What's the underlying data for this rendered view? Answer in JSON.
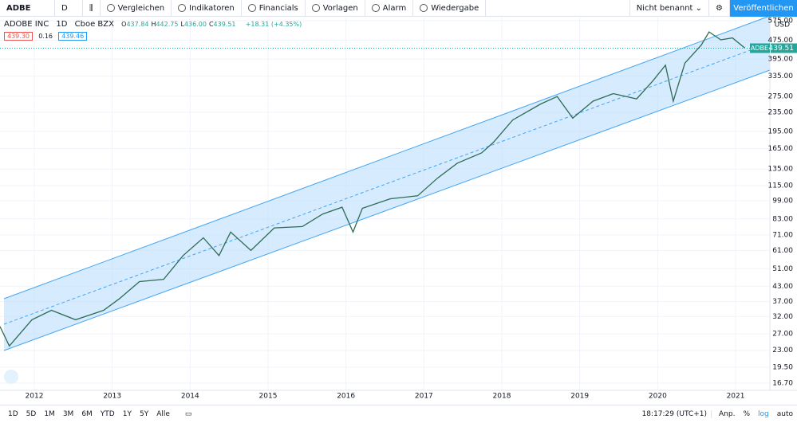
{
  "toolbar": {
    "symbol": "ADBE",
    "interval": "D",
    "items": [
      "Vergleichen",
      "Indikatoren",
      "Financials",
      "Vorlagen",
      "Alarm",
      "Wiedergabe"
    ],
    "layout_name": "Nicht benannt",
    "publish": "Veröffentlichen"
  },
  "legend": {
    "title": "ADOBE INC",
    "interval": "1D",
    "exchange": "Cboe BZX",
    "ohlc": [
      {
        "label": "O",
        "value": "437.84"
      },
      {
        "label": "H",
        "value": "442.75"
      },
      {
        "label": "L",
        "value": "436.00"
      },
      {
        "label": "C",
        "value": "439.51"
      }
    ],
    "change": "+18.31 (+4.35%)",
    "bid": "439.30",
    "spread": "0.16",
    "ask": "439.46"
  },
  "chart_data": {
    "type": "line",
    "log_scale": true,
    "color": "#2e6b55",
    "currency": "USD",
    "symbol_tag": "ADBE",
    "last_price": {
      "value": 439.51,
      "label": "439.51"
    },
    "x": [
      2011.56,
      2011.68,
      2011.97,
      2012.22,
      2012.53,
      2012.89,
      2013.09,
      2013.35,
      2013.66,
      2013.91,
      2014.17,
      2014.37,
      2014.52,
      2014.78,
      2015.08,
      2015.44,
      2015.7,
      2015.95,
      2016.09,
      2016.21,
      2016.57,
      2016.92,
      2017.18,
      2017.43,
      2017.74,
      2017.89,
      2018.14,
      2018.5,
      2018.71,
      2018.91,
      2019.17,
      2019.43,
      2019.73,
      2019.94,
      2020.1,
      2020.2,
      2020.35,
      2020.56,
      2020.66,
      2020.81,
      2020.96,
      2021.12
    ],
    "values": [
      29,
      24,
      31,
      34,
      31,
      34,
      38,
      45,
      46,
      58,
      69,
      58,
      73,
      61,
      76,
      77,
      87,
      93,
      73,
      92,
      101,
      104,
      124,
      143,
      158,
      175,
      218,
      255,
      274,
      222,
      262,
      282,
      268,
      320,
      372,
      262,
      380,
      453,
      515,
      477,
      486,
      440
    ],
    "xlim": [
      2011.56,
      2021.44
    ],
    "xticks": [
      2012,
      2013,
      2014,
      2015,
      2016,
      2017,
      2018,
      2019,
      2020,
      2021
    ],
    "ylim": [
      15.8,
      593
    ],
    "yticks": [
      {
        "value": 575,
        "label": "575.00"
      },
      {
        "value": 475,
        "label": "475.00"
      },
      {
        "value": 395,
        "label": "395.00"
      },
      {
        "value": 335,
        "label": "335.00"
      },
      {
        "value": 275,
        "label": "275.00"
      },
      {
        "value": 235,
        "label": "235.00"
      },
      {
        "value": 195,
        "label": "195.00"
      },
      {
        "value": 165,
        "label": "165.00"
      },
      {
        "value": 135,
        "label": "135.00"
      },
      {
        "value": 115,
        "label": "115.00"
      },
      {
        "value": 99,
        "label": "99.00"
      },
      {
        "value": 83,
        "label": "83.00"
      },
      {
        "value": 71,
        "label": "71.00"
      },
      {
        "value": 61,
        "label": "61.00"
      },
      {
        "value": 51,
        "label": "51.00"
      },
      {
        "value": 43,
        "label": "43.00"
      },
      {
        "value": 37,
        "label": "37.00"
      },
      {
        "value": 32,
        "label": "32.00"
      },
      {
        "value": 27,
        "label": "27.00"
      },
      {
        "value": 23,
        "label": "23.00"
      },
      {
        "value": 19.5,
        "label": "19.50"
      },
      {
        "value": 16.7,
        "label": "16.70"
      }
    ],
    "grid": true
  },
  "bottom_bar": {
    "ranges": [
      "1D",
      "5D",
      "1M",
      "3M",
      "6M",
      "YTD",
      "1Y",
      "5Y",
      "Alle"
    ],
    "time": "18:17:29 (UTC+1)",
    "options": [
      "Anp.",
      "%",
      "log",
      "auto"
    ]
  }
}
